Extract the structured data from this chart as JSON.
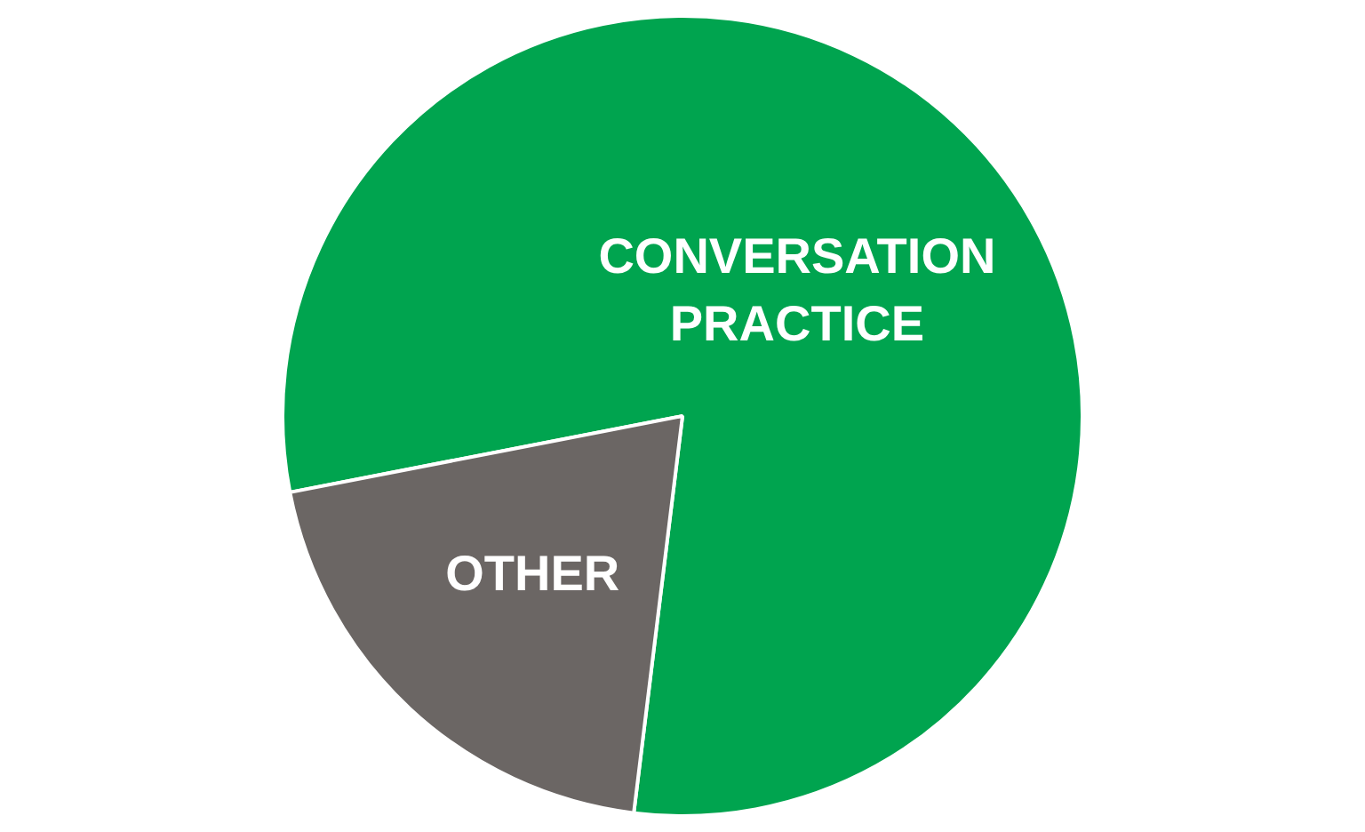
{
  "chart_data": {
    "type": "pie",
    "categories": [
      "CONVERSATION PRACTICE",
      "OTHER"
    ],
    "values": [
      80,
      20
    ],
    "colors": [
      "#00a44f",
      "#6b6664"
    ]
  }
}
